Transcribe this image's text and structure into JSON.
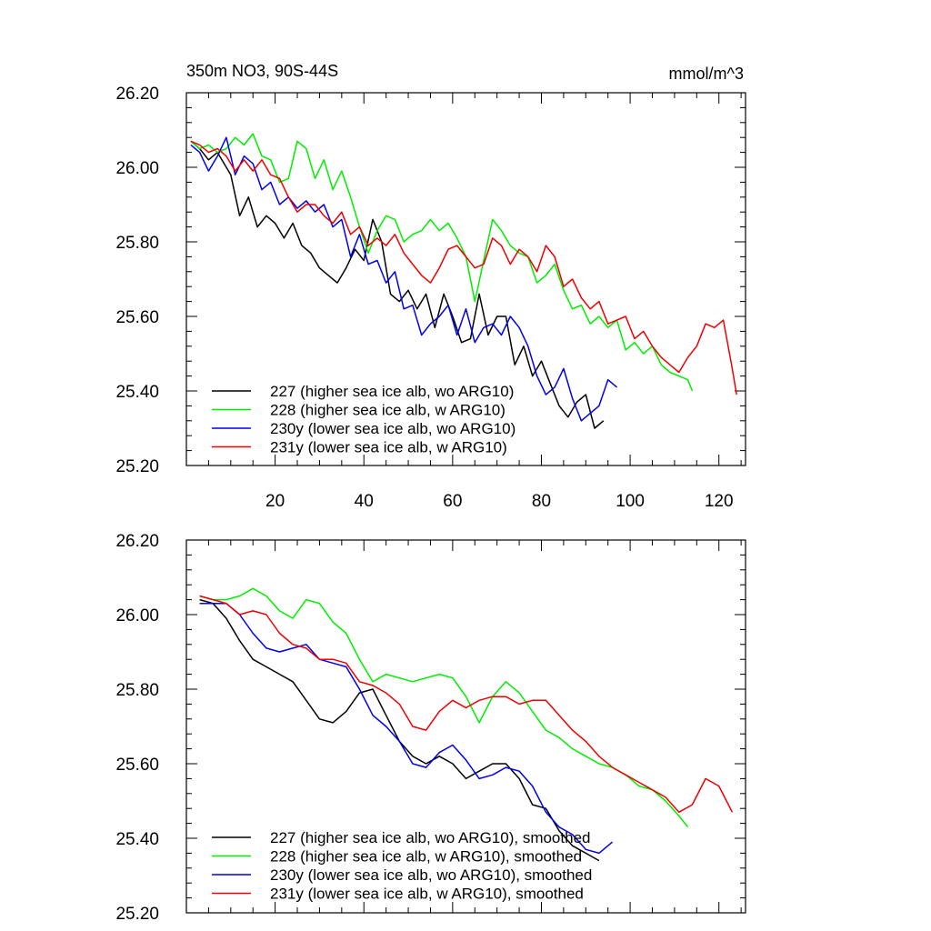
{
  "chart_data": [
    {
      "type": "line",
      "title": "350m NO3, 90S-44S",
      "units": "mmol/m^3",
      "xlabel": "",
      "ylabel": "",
      "xlim": [
        0,
        126
      ],
      "ylim": [
        25.2,
        26.2
      ],
      "xticks": [
        "20",
        "40",
        "60",
        "80",
        "100",
        "120"
      ],
      "yticks": [
        "25.20",
        "25.40",
        "25.60",
        "25.80",
        "26.00",
        "26.20"
      ],
      "legend_position": "bottom-left",
      "series": [
        {
          "name": "227 (higher sea ice alb, wo ARG10)",
          "color": "#000000",
          "x": [
            1,
            3,
            5,
            7,
            9,
            10,
            12,
            14,
            16,
            18,
            20,
            22,
            24,
            26,
            28,
            30,
            32,
            34,
            36,
            38,
            40,
            42,
            44,
            46,
            48,
            50,
            52,
            54,
            56,
            58,
            60,
            62,
            64,
            66,
            68,
            70,
            72,
            74,
            76,
            78,
            80,
            82,
            84,
            86,
            88,
            90,
            92,
            94
          ],
          "y": [
            26.07,
            26.05,
            26.02,
            26.04,
            26.0,
            25.98,
            25.87,
            25.92,
            25.84,
            25.87,
            25.85,
            25.81,
            25.85,
            25.79,
            25.77,
            25.73,
            25.71,
            25.69,
            25.73,
            25.78,
            25.75,
            25.86,
            25.8,
            25.66,
            25.64,
            25.67,
            25.62,
            25.66,
            25.57,
            25.66,
            25.6,
            25.53,
            25.54,
            25.66,
            25.55,
            25.6,
            25.6,
            25.47,
            25.52,
            25.44,
            25.48,
            25.42,
            25.36,
            25.33,
            25.37,
            25.39,
            25.3,
            25.32
          ]
        },
        {
          "name": "228 (higher sea ice alb, w ARG10)",
          "color": "#00ee00",
          "x": [
            1,
            3,
            5,
            7,
            9,
            11,
            13,
            15,
            17,
            19,
            21,
            23,
            25,
            27,
            29,
            31,
            33,
            35,
            37,
            39,
            41,
            43,
            45,
            47,
            49,
            51,
            53,
            55,
            57,
            59,
            61,
            63,
            65,
            67,
            69,
            71,
            73,
            75,
            77,
            79,
            81,
            83,
            85,
            87,
            89,
            91,
            93,
            95,
            97,
            99,
            101,
            103,
            105,
            107,
            109,
            111,
            113,
            114
          ],
          "y": [
            26.07,
            26.05,
            26.06,
            26.04,
            26.05,
            26.08,
            26.06,
            26.09,
            26.03,
            26.02,
            25.96,
            25.97,
            26.07,
            26.05,
            25.97,
            26.02,
            25.94,
            25.99,
            25.92,
            25.84,
            25.77,
            25.83,
            25.87,
            25.86,
            25.8,
            25.82,
            25.83,
            25.86,
            25.83,
            25.85,
            25.81,
            25.76,
            25.64,
            25.75,
            25.86,
            25.83,
            25.79,
            25.77,
            25.76,
            25.69,
            25.71,
            25.74,
            25.67,
            25.62,
            25.63,
            25.58,
            25.6,
            25.57,
            25.59,
            25.51,
            25.53,
            25.5,
            25.52,
            25.47,
            25.45,
            25.44,
            25.43,
            25.4
          ]
        },
        {
          "name": "230y (lower sea ice alb, wo ARG10)",
          "color": "#0000ee",
          "x": [
            1,
            3,
            5,
            7,
            9,
            11,
            13,
            15,
            17,
            19,
            21,
            23,
            25,
            27,
            29,
            31,
            33,
            35,
            37,
            39,
            41,
            43,
            45,
            47,
            49,
            51,
            53,
            55,
            57,
            59,
            61,
            63,
            65,
            67,
            69,
            71,
            73,
            75,
            77,
            79,
            81,
            83,
            85,
            87,
            89,
            91,
            93,
            95,
            97
          ],
          "y": [
            26.06,
            26.04,
            25.99,
            26.03,
            26.08,
            25.98,
            26.03,
            26.01,
            25.94,
            25.96,
            25.9,
            25.92,
            25.89,
            25.91,
            25.88,
            25.9,
            25.84,
            25.86,
            25.76,
            25.82,
            25.74,
            25.75,
            25.69,
            25.72,
            25.62,
            25.63,
            25.55,
            25.58,
            25.6,
            25.63,
            25.55,
            25.62,
            25.53,
            25.57,
            25.58,
            25.55,
            25.6,
            25.57,
            25.52,
            25.44,
            25.39,
            25.41,
            25.46,
            25.38,
            25.32,
            25.34,
            25.36,
            25.43,
            25.41
          ]
        },
        {
          "name": "231y (lower sea ice alb, w ARG10)",
          "color": "#ee0000",
          "x": [
            1,
            3,
            5,
            7,
            9,
            11,
            13,
            15,
            17,
            19,
            21,
            23,
            25,
            27,
            29,
            31,
            33,
            35,
            37,
            39,
            41,
            43,
            45,
            47,
            49,
            51,
            53,
            55,
            57,
            59,
            61,
            63,
            65,
            67,
            69,
            71,
            73,
            75,
            77,
            79,
            81,
            83,
            85,
            87,
            89,
            91,
            93,
            95,
            97,
            99,
            101,
            103,
            105,
            107,
            109,
            111,
            113,
            115,
            117,
            119,
            121,
            123,
            124
          ],
          "y": [
            26.07,
            26.06,
            26.04,
            26.05,
            26.03,
            25.99,
            26.02,
            25.99,
            26.02,
            25.98,
            25.97,
            25.92,
            25.88,
            25.9,
            25.9,
            25.87,
            25.85,
            25.88,
            25.82,
            25.84,
            25.79,
            25.81,
            25.79,
            25.82,
            25.77,
            25.74,
            25.71,
            25.69,
            25.73,
            25.78,
            25.79,
            25.76,
            25.73,
            25.74,
            25.81,
            25.79,
            25.74,
            25.78,
            25.76,
            25.72,
            25.79,
            25.76,
            25.68,
            25.7,
            25.65,
            25.62,
            25.64,
            25.58,
            25.59,
            25.6,
            25.54,
            25.56,
            25.52,
            25.49,
            25.47,
            25.45,
            25.49,
            25.52,
            25.58,
            25.57,
            25.59,
            25.46,
            25.39
          ]
        }
      ]
    },
    {
      "type": "line",
      "title": "",
      "xlabel": "",
      "ylabel": "",
      "xlim": [
        0,
        126
      ],
      "ylim": [
        25.2,
        26.2
      ],
      "xticks": [],
      "yticks": [
        "25.20",
        "25.40",
        "25.60",
        "25.80",
        "26.00",
        "26.20"
      ],
      "legend_position": "bottom-left",
      "series": [
        {
          "name": "227 (higher sea ice alb, wo ARG10), smoothed",
          "color": "#000000",
          "x": [
            3,
            6,
            9,
            12,
            15,
            18,
            21,
            24,
            27,
            30,
            33,
            36,
            39,
            42,
            45,
            48,
            51,
            54,
            57,
            60,
            63,
            66,
            69,
            72,
            75,
            78,
            81,
            84,
            87,
            90,
            93
          ],
          "y": [
            26.04,
            26.03,
            25.99,
            25.93,
            25.88,
            25.86,
            25.84,
            25.82,
            25.77,
            25.72,
            25.71,
            25.74,
            25.79,
            25.8,
            25.73,
            25.66,
            25.62,
            25.6,
            25.62,
            25.6,
            25.56,
            25.58,
            25.6,
            25.6,
            25.56,
            25.49,
            25.48,
            25.42,
            25.38,
            25.36,
            25.34
          ]
        },
        {
          "name": "228 (higher sea ice alb, w ARG10), smoothed",
          "color": "#00ee00",
          "x": [
            3,
            6,
            9,
            12,
            15,
            18,
            21,
            24,
            27,
            30,
            33,
            36,
            39,
            42,
            45,
            48,
            51,
            54,
            57,
            60,
            63,
            66,
            69,
            72,
            75,
            78,
            81,
            84,
            87,
            90,
            93,
            96,
            99,
            102,
            105,
            108,
            111,
            113
          ],
          "y": [
            26.05,
            26.04,
            26.04,
            26.05,
            26.07,
            26.05,
            26.01,
            25.99,
            26.04,
            26.03,
            25.98,
            25.95,
            25.88,
            25.82,
            25.84,
            25.83,
            25.82,
            25.83,
            25.84,
            25.83,
            25.78,
            25.71,
            25.78,
            25.82,
            25.79,
            25.74,
            25.69,
            25.67,
            25.64,
            25.62,
            25.6,
            25.59,
            25.57,
            25.54,
            25.53,
            25.5,
            25.46,
            25.43
          ]
        },
        {
          "name": "230y (lower sea ice alb, wo ARG10), smoothed",
          "color": "#0000ee",
          "x": [
            3,
            6,
            9,
            12,
            15,
            18,
            21,
            24,
            27,
            30,
            33,
            36,
            39,
            42,
            45,
            48,
            51,
            54,
            57,
            60,
            63,
            66,
            69,
            72,
            75,
            78,
            81,
            84,
            87,
            90,
            93,
            96
          ],
          "y": [
            26.03,
            26.03,
            26.03,
            26.0,
            25.95,
            25.91,
            25.9,
            25.91,
            25.92,
            25.88,
            25.87,
            25.86,
            25.8,
            25.73,
            25.7,
            25.66,
            25.6,
            25.59,
            25.63,
            25.65,
            25.61,
            25.56,
            25.57,
            25.59,
            25.58,
            25.54,
            25.47,
            25.43,
            25.41,
            25.37,
            25.36,
            25.39
          ]
        },
        {
          "name": "231y (lower sea ice alb, w ARG10), smoothed",
          "color": "#ee0000",
          "x": [
            3,
            6,
            9,
            12,
            15,
            18,
            21,
            24,
            27,
            30,
            33,
            36,
            39,
            42,
            45,
            48,
            51,
            54,
            57,
            60,
            63,
            66,
            69,
            72,
            75,
            78,
            81,
            84,
            87,
            90,
            93,
            96,
            99,
            102,
            105,
            108,
            111,
            114,
            117,
            120,
            123
          ],
          "y": [
            26.05,
            26.04,
            26.03,
            26.0,
            26.01,
            26.0,
            25.95,
            25.92,
            25.91,
            25.88,
            25.88,
            25.87,
            25.82,
            25.81,
            25.79,
            25.76,
            25.7,
            25.69,
            25.74,
            25.77,
            25.75,
            25.77,
            25.78,
            25.78,
            25.76,
            25.77,
            25.77,
            25.73,
            25.69,
            25.66,
            25.62,
            25.59,
            25.57,
            25.55,
            25.53,
            25.51,
            25.47,
            25.49,
            25.56,
            25.54,
            25.47
          ]
        }
      ]
    }
  ]
}
